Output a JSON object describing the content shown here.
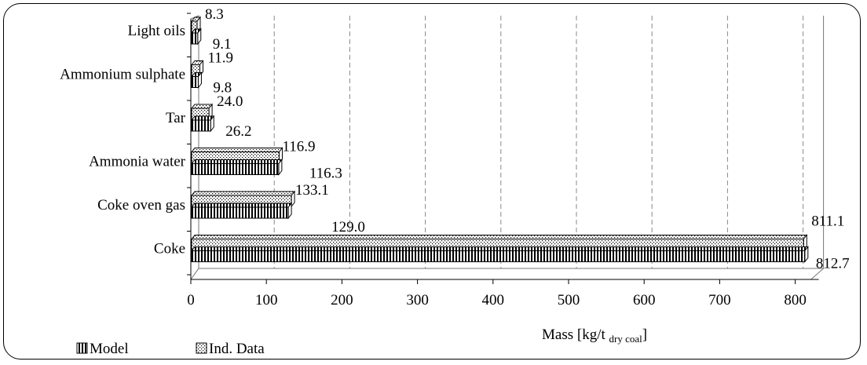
{
  "chart_data": {
    "type": "bar",
    "orientation": "horizontal",
    "categories": [
      "Light oils",
      "Ammonium sulphate",
      "Tar",
      "Ammonia water",
      "Coke oven gas",
      "Coke"
    ],
    "series": [
      {
        "name": "Ind. Data",
        "values": [
          8.3,
          11.9,
          24.0,
          116.9,
          133.1,
          811.1
        ],
        "labels": [
          "8.3",
          "11.9",
          "24.0",
          "116.9",
          "133.1",
          "811.1"
        ]
      },
      {
        "name": "Model",
        "values": [
          9.1,
          9.8,
          26.2,
          116.3,
          129.0,
          812.7
        ],
        "labels": [
          "9.1",
          "9.8",
          "26.2",
          "116.3",
          "129.0",
          "812.7"
        ]
      }
    ],
    "x_ticks": [
      "0",
      "100",
      "200",
      "300",
      "400",
      "500",
      "600",
      "700",
      "800"
    ],
    "xlim": [
      0,
      800
    ],
    "xlabel_main": "Mass [kg/t",
    "xlabel_sub": "dry coal",
    "xlabel_end": "]",
    "grid": "vertical dashed",
    "legend_placement": "bottom-left",
    "legend": [
      {
        "name": "Model",
        "pattern": "vertical-stripes"
      },
      {
        "name": "Ind. Data",
        "pattern": "dots"
      }
    ]
  }
}
